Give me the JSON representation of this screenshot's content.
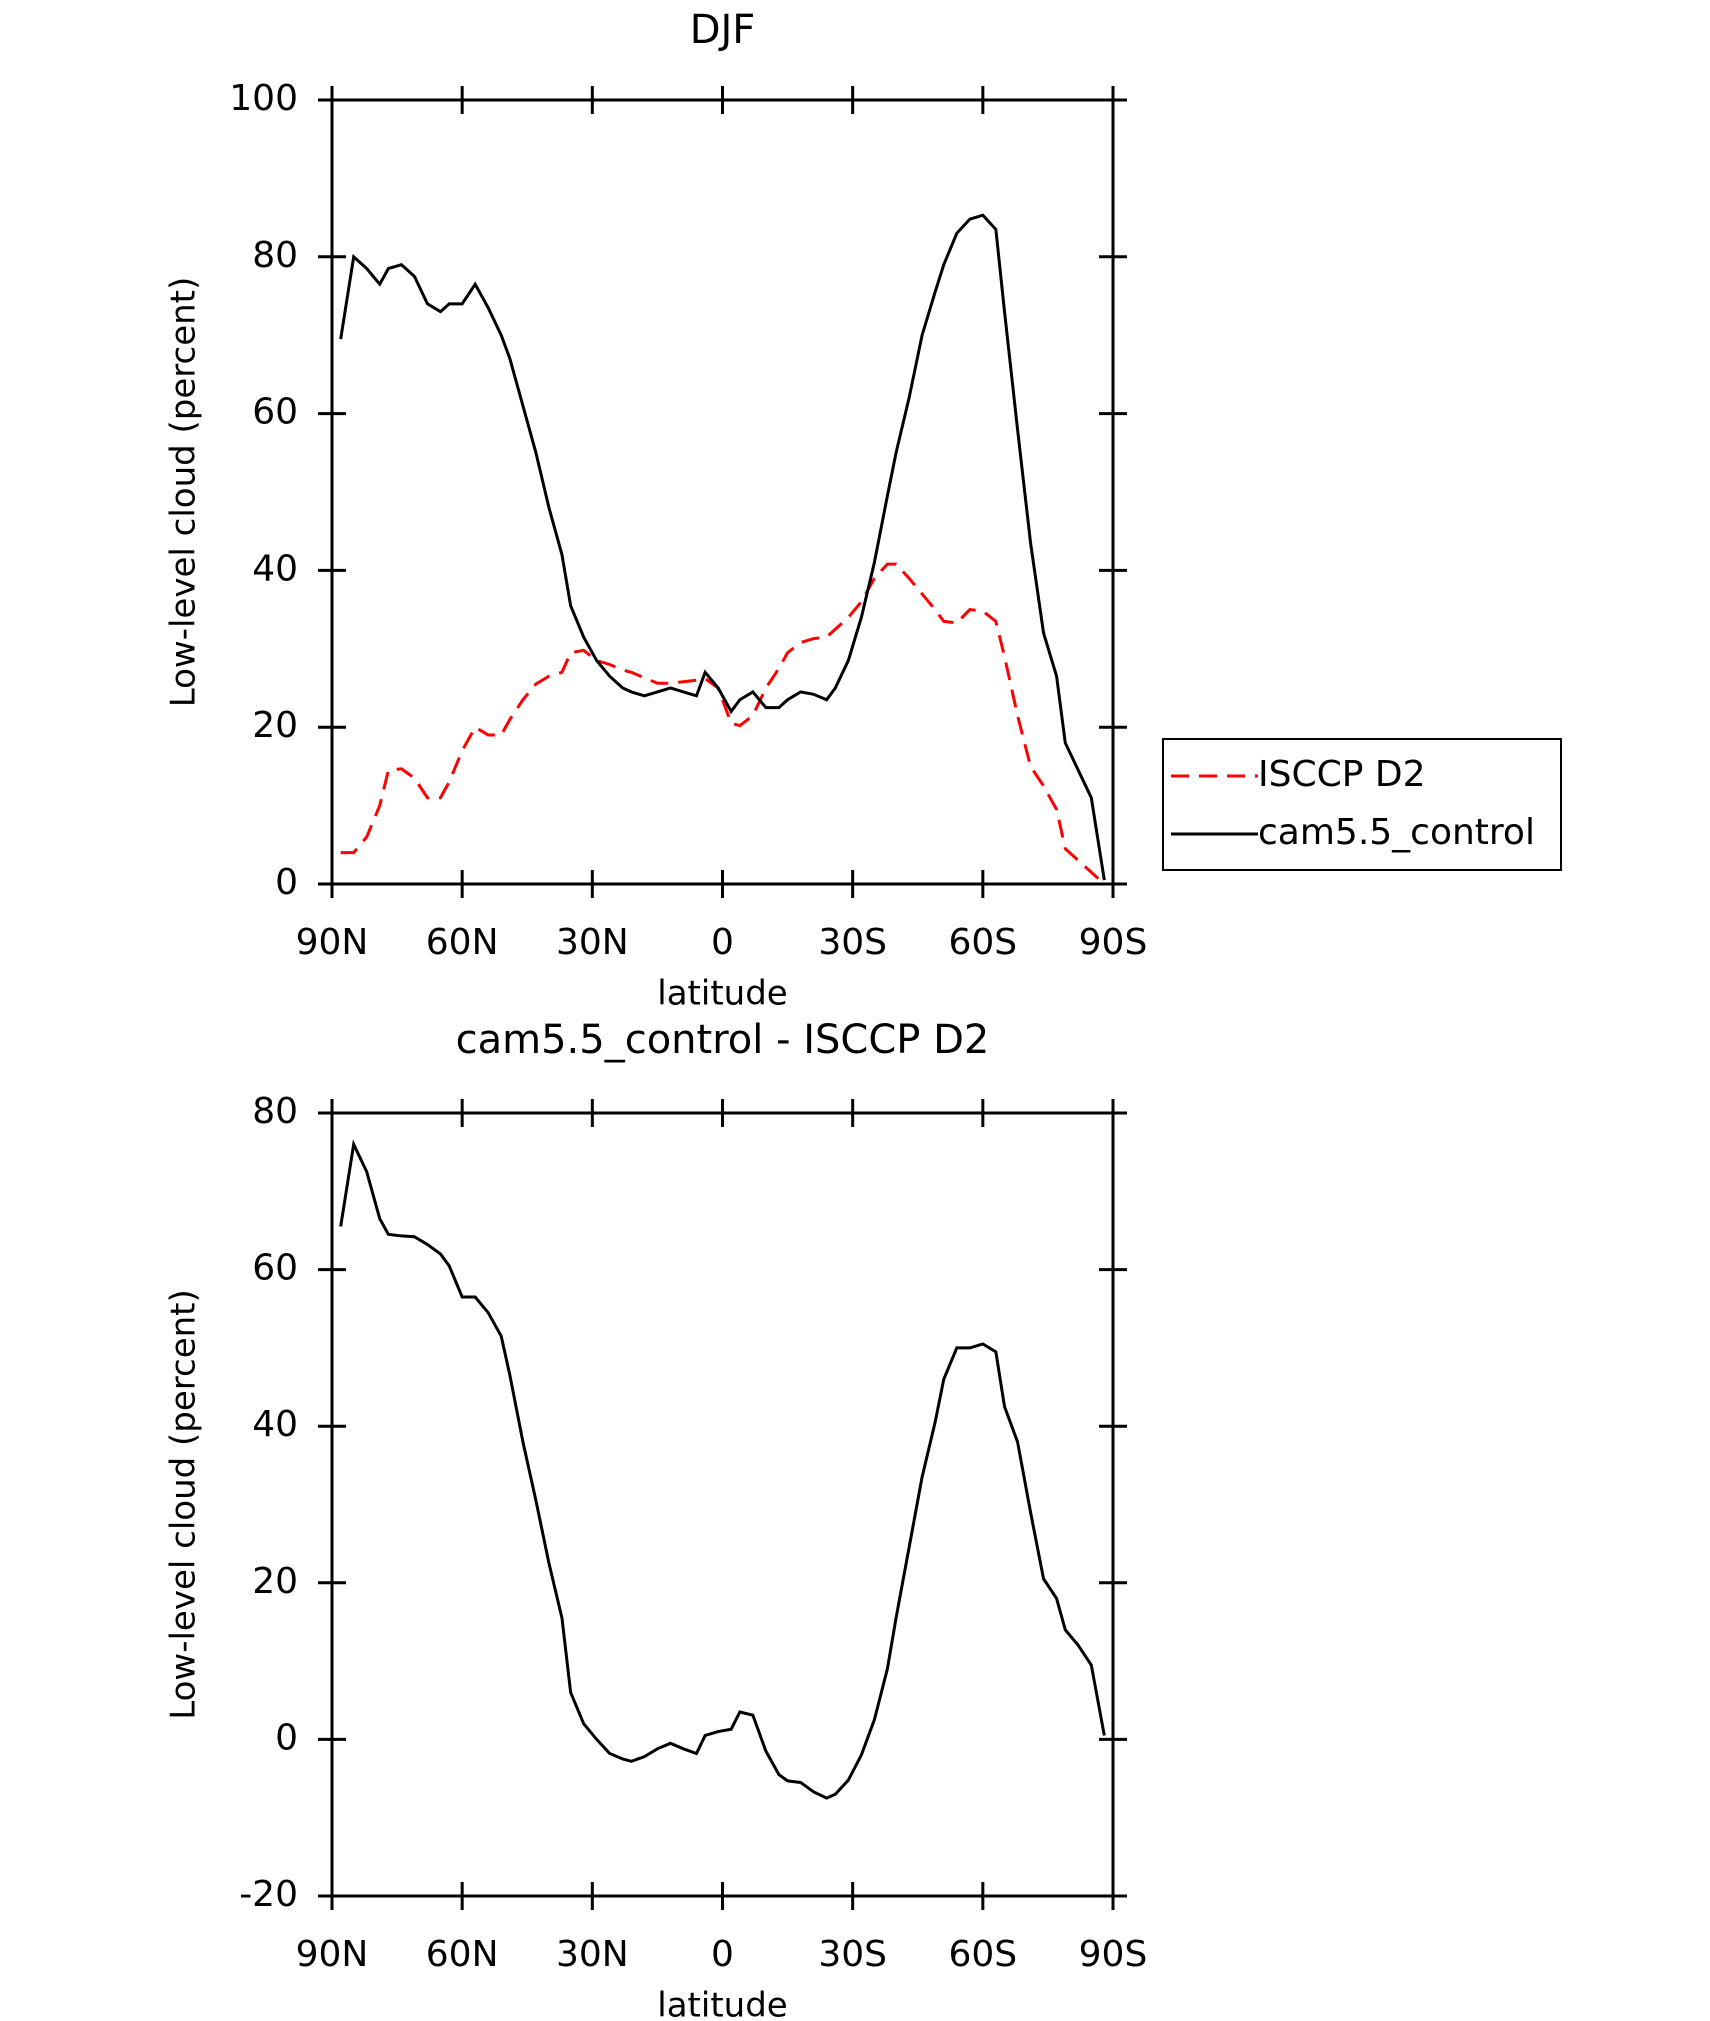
{
  "chart_data": [
    {
      "type": "line",
      "title": "DJF",
      "xlabel": "latitude",
      "ylabel": "Low-level cloud (percent)",
      "x": [
        88,
        85,
        82,
        79,
        77,
        74,
        71,
        68,
        65,
        63,
        60,
        57,
        54,
        51,
        49,
        46,
        43,
        40,
        37,
        35,
        32,
        29,
        26,
        23,
        21,
        18,
        15,
        12,
        9,
        6,
        4,
        1,
        -2,
        -4,
        -7,
        -10,
        -13,
        -15,
        -18,
        -21,
        -24,
        -26,
        -29,
        -32,
        -35,
        -38,
        -40,
        -43,
        -46,
        -49,
        -51,
        -54,
        -57,
        -60,
        -63,
        -65,
        -68,
        -71,
        -74,
        -77,
        -79,
        -82,
        -85,
        -88
      ],
      "series": [
        {
          "name": "ISCCP D2",
          "color": "#ff0000",
          "dash": true,
          "values": [
            4,
            4,
            6,
            10,
            14.5,
            14.7,
            13.5,
            11,
            11,
            13,
            17,
            20,
            19,
            19,
            21,
            23.5,
            25.5,
            26.5,
            27,
            29.5,
            29.8,
            28.5,
            28,
            27.3,
            27,
            26.3,
            25.6,
            25.6,
            25.8,
            26,
            26.2,
            25,
            20.5,
            20.2,
            21.5,
            25,
            27.5,
            29.5,
            30.8,
            31.3,
            31.5,
            32.5,
            34,
            36,
            39,
            40.8,
            40.8,
            39,
            37,
            35,
            33.5,
            33.3,
            35,
            34.8,
            33.5,
            29,
            21.5,
            15,
            12.5,
            9.5,
            4.5,
            3,
            1.5,
            0
          ]
        },
        {
          "name": "cam5.5_control",
          "color": "#000000",
          "dash": false,
          "values": [
            69.5,
            80,
            78.5,
            76.5,
            78.5,
            79,
            77.5,
            74,
            73,
            74,
            74,
            76.5,
            73.5,
            70,
            67,
            61,
            55,
            48,
            42,
            35.5,
            31.5,
            28.5,
            26.5,
            25,
            24.5,
            24,
            24.5,
            25,
            24.5,
            24,
            27,
            25,
            22,
            23.5,
            24.5,
            22.5,
            22.5,
            23.5,
            24.5,
            24.2,
            23.5,
            25,
            28.5,
            34,
            41,
            49.5,
            55,
            62,
            70,
            75.5,
            79,
            83,
            84.8,
            85.3,
            83.5,
            73,
            58,
            43.5,
            32,
            26.5,
            18,
            14.5,
            11,
            0.5
          ]
        }
      ],
      "legend": "right",
      "xlim": [
        90,
        -90
      ],
      "xticks": [
        {
          "value": 90,
          "label": "90N"
        },
        {
          "value": 60,
          "label": "60N"
        },
        {
          "value": 30,
          "label": "30N"
        },
        0,
        {
          "value": -30,
          "label": "30S"
        },
        {
          "value": -60,
          "label": "60S"
        },
        {
          "value": -90,
          "label": "90S"
        }
      ],
      "ylim": [
        0,
        100
      ],
      "yticks": [
        0,
        20,
        40,
        60,
        80,
        100
      ]
    },
    {
      "type": "line",
      "title": "cam5.5_control - ISCCP D2",
      "xlabel": "latitude",
      "ylabel": "Low-level cloud (percent)",
      "x": [
        88,
        85,
        82,
        79,
        77,
        74,
        71,
        68,
        65,
        63,
        60,
        57,
        54,
        51,
        49,
        46,
        43,
        40,
        37,
        35,
        32,
        29,
        26,
        23,
        21,
        18,
        15,
        12,
        9,
        6,
        4,
        1,
        -2,
        -4,
        -7,
        -10,
        -13,
        -15,
        -18,
        -21,
        -24,
        -26,
        -29,
        -32,
        -35,
        -38,
        -40,
        -43,
        -46,
        -49,
        -51,
        -54,
        -57,
        -60,
        -63,
        -65,
        -68,
        -71,
        -74,
        -77,
        -79,
        -82,
        -85,
        -88
      ],
      "series": [
        {
          "color": "#000000",
          "dash": false,
          "values": [
            65.5,
            76,
            72.5,
            66.5,
            64.5,
            64.3,
            64.2,
            63.2,
            62,
            60.5,
            56.5,
            56.5,
            54.5,
            51.5,
            46.5,
            38,
            30.5,
            22.5,
            15.5,
            6,
            2,
            0,
            -1.8,
            -2.5,
            -2.8,
            -2.2,
            -1.2,
            -0.5,
            -1.2,
            -1.8,
            0.5,
            1,
            1.3,
            3.5,
            3.1,
            -1.5,
            -4.5,
            -5.3,
            -5.5,
            -6.7,
            -7.5,
            -7,
            -5.2,
            -2,
            2.5,
            9,
            15.5,
            24.5,
            33.5,
            40.5,
            46,
            50,
            50,
            50.5,
            49.5,
            42.5,
            38,
            29,
            20.5,
            18,
            14,
            12,
            9.5,
            0.5
          ]
        }
      ],
      "xlim": [
        90,
        -90
      ],
      "xticks": [
        {
          "value": 90,
          "label": "90N"
        },
        {
          "value": 60,
          "label": "60N"
        },
        {
          "value": 30,
          "label": "30N"
        },
        0,
        {
          "value": -30,
          "label": "30S"
        },
        {
          "value": -60,
          "label": "60S"
        },
        {
          "value": -90,
          "label": "90S"
        }
      ],
      "ylim": [
        -20,
        80
      ],
      "yticks": [
        -20,
        0,
        20,
        40,
        60,
        80
      ]
    }
  ]
}
